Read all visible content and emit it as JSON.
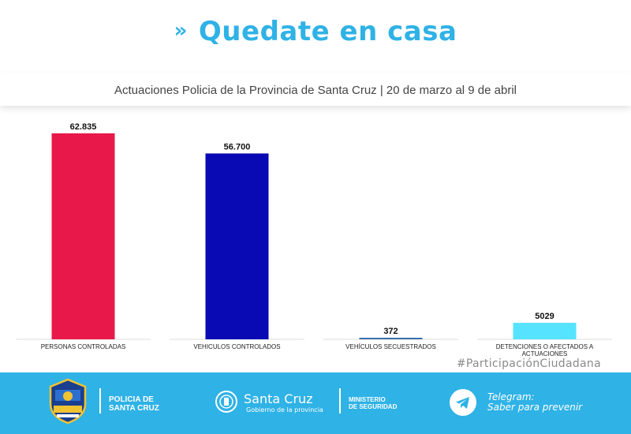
{
  "header": {
    "chevron": "»",
    "headline": "Quedate en casa",
    "subtitle": "Actuaciones Policia de la Provincia de Santa Cruz | 20 de marzo al 9 de abril"
  },
  "chart_data": {
    "type": "bar",
    "categories": [
      "PERSONAS CONTROLADAS",
      "VEHICULOS CONTROLADOS",
      "VEHÍCULOS SECUESTRADOS",
      "DETENCIONES O AFECTADOS A ACTUACIONES"
    ],
    "category_lines": [
      [
        "PERSONAS CONTROLADAS"
      ],
      [
        "VEHICULOS CONTROLADOS"
      ],
      [
        "VEHÍCULOS SECUESTRADOS"
      ],
      [
        "DETENCIONES O AFECTADOS A",
        "ACTUACIONES"
      ]
    ],
    "values": [
      62835,
      56700,
      372,
      5029
    ],
    "value_labels": [
      "62.835",
      "56.700",
      "372",
      "5029"
    ],
    "colors": [
      "#e8194a",
      "#0a0ab5",
      "#3a6fb0",
      "#56e3ff"
    ],
    "ylim": [
      0,
      65000
    ],
    "grid": false,
    "legend": "none"
  },
  "hashtag": "#ParticipaciónCiudadana",
  "footer": {
    "policia_line1": "POLICIA DE",
    "policia_line2": "SANTA CRUZ",
    "santa_cruz": "Santa Cruz",
    "gobierno": "Gobierno de la provincia",
    "ministerio_line1": "MINISTERIO",
    "ministerio_line2": "DE SEGURIDAD",
    "telegram_line1": "Telegram:",
    "telegram_line2": "Saber para prevenir",
    "icons": [
      "police-badge-icon",
      "province-seal-icon",
      "telegram-icon"
    ]
  }
}
